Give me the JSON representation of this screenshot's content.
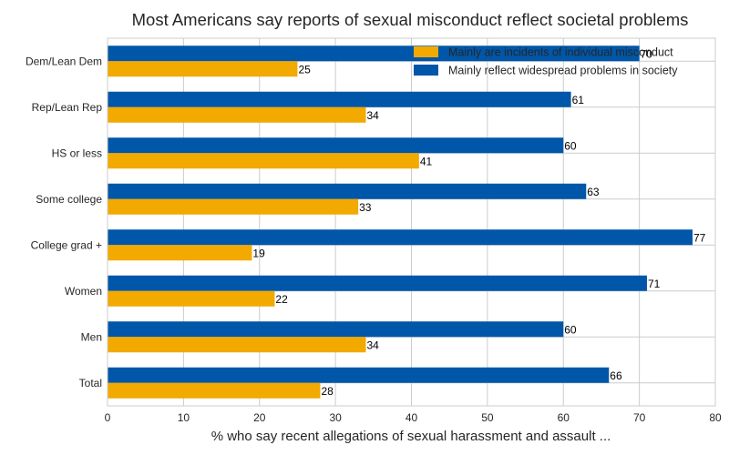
{
  "chart_data": {
    "type": "bar",
    "orientation": "horizontal",
    "title": "Most Americans say reports of sexual misconduct reflect societal problems",
    "xlabel": "% who say recent allegations of sexual harassment and assault ...",
    "ylabel": "",
    "xlim": [
      0,
      80
    ],
    "xticks": [
      0,
      10,
      20,
      30,
      40,
      50,
      60,
      70,
      80
    ],
    "grid": true,
    "legend_position": "top-right",
    "categories": [
      "Dem/Lean Dem",
      "Rep/Lean Rep",
      "HS or less",
      "Some college",
      "College grad +",
      "Women",
      "Men",
      "Total"
    ],
    "series": [
      {
        "name": "Mainly are incidents of individual misconduct",
        "color": "#f2a900",
        "values": [
          25,
          34,
          41,
          33,
          19,
          22,
          34,
          28
        ]
      },
      {
        "name": "Mainly reflect widespread problems in society",
        "color": "#0056a8",
        "values": [
          70,
          61,
          60,
          63,
          77,
          71,
          60,
          66
        ]
      }
    ]
  }
}
